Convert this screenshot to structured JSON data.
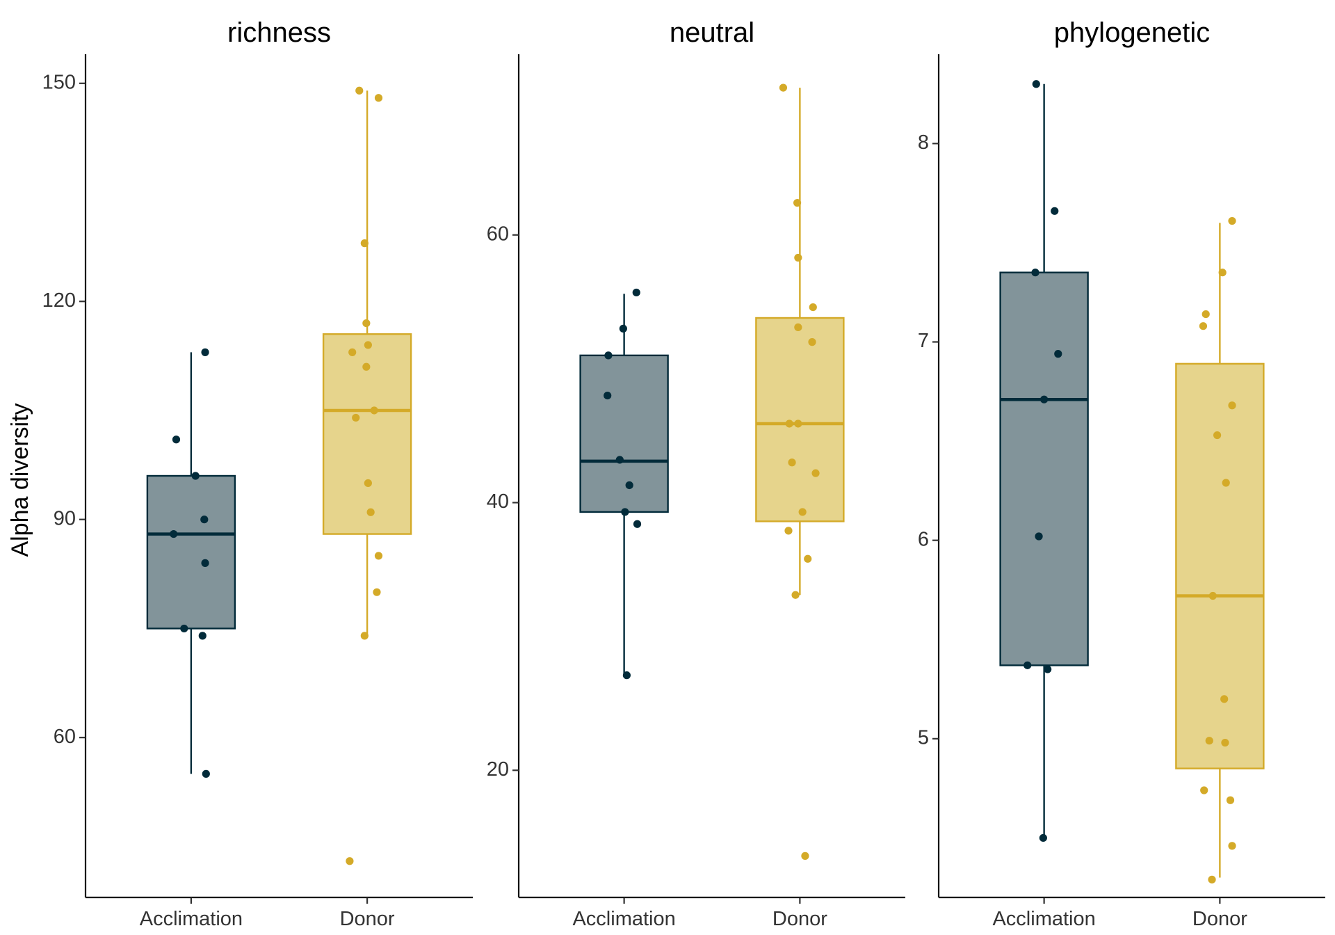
{
  "chart_data": {
    "type": "box",
    "ylabel": "Alpha diversity",
    "xlabel": "",
    "categories": [
      "Acclimation",
      "Donor"
    ],
    "colors": {
      "Acclimation": "#022b3a",
      "Donor": "#d4aa28"
    },
    "fill_colors": {
      "Acclimation": "#82949a",
      "Donor": "#e6d48c"
    },
    "grid": false,
    "legend": "none",
    "facets": [
      {
        "title": "richness",
        "ylim": [
          38,
          154
        ],
        "yticks": [
          60,
          90,
          120,
          150
        ],
        "boxes": [
          {
            "group": "Acclimation",
            "q1": 75,
            "median": 88,
            "q3": 96,
            "whisker_low": 55,
            "whisker_high": 113
          },
          {
            "group": "Donor",
            "q1": 88,
            "median": 105,
            "q3": 115.5,
            "whisker_low": 74,
            "whisker_high": 149
          }
        ],
        "points": [
          {
            "group": "Acclimation",
            "values": [
              101,
              96,
              88,
              90,
              84,
              75,
              74,
              113,
              55
            ],
            "jitter": [
              -0.17,
              0.05,
              -0.2,
              0.15,
              0.16,
              -0.08,
              0.13,
              0.16,
              0.17
            ]
          },
          {
            "group": "Donor",
            "values": [
              149,
              148,
              128,
              117,
              114,
              113,
              111,
              105,
              104,
              95,
              91,
              85,
              80,
              74,
              43
            ],
            "jitter": [
              -0.09,
              0.13,
              -0.03,
              -0.01,
              0.01,
              -0.17,
              -0.01,
              0.08,
              -0.13,
              0.01,
              0.04,
              0.13,
              0.11,
              -0.03,
              -0.2
            ]
          }
        ]
      },
      {
        "title": "neutral",
        "ylim": [
          10.5,
          73.5
        ],
        "yticks": [
          20,
          40,
          60
        ],
        "boxes": [
          {
            "group": "Acclimation",
            "q1": 39.3,
            "median": 43.1,
            "q3": 51,
            "whisker_low": 27,
            "whisker_high": 55.6
          },
          {
            "group": "Donor",
            "q1": 38.6,
            "median": 45.9,
            "q3": 53.8,
            "whisker_low": 33.1,
            "whisker_high": 71
          }
        ],
        "points": [
          {
            "group": "Acclimation",
            "values": [
              55.7,
              53,
              51,
              48,
              43.2,
              41.3,
              39.3,
              38.4,
              27.1
            ],
            "jitter": [
              0.14,
              -0.01,
              -0.18,
              -0.19,
              -0.05,
              0.06,
              0.01,
              0.15,
              0.03
            ]
          },
          {
            "group": "Donor",
            "values": [
              71,
              62.4,
              58.3,
              54.6,
              53.1,
              52,
              45.9,
              45.9,
              43,
              42.2,
              39.3,
              37.9,
              35.8,
              33.1,
              13.6
            ],
            "jitter": [
              -0.19,
              -0.03,
              -0.02,
              0.15,
              -0.02,
              0.14,
              -0.12,
              -0.02,
              -0.09,
              0.18,
              0.03,
              -0.13,
              0.09,
              -0.05,
              0.06
            ]
          }
        ]
      },
      {
        "title": "phylogenetic",
        "ylim": [
          4.2,
          8.45
        ],
        "yticks": [
          5,
          6,
          7,
          8
        ],
        "boxes": [
          {
            "group": "Acclimation",
            "q1": 5.37,
            "median": 6.71,
            "q3": 7.35,
            "whisker_low": 4.5,
            "whisker_high": 8.3
          },
          {
            "group": "Donor",
            "q1": 4.85,
            "median": 5.72,
            "q3": 6.89,
            "whisker_low": 4.3,
            "whisker_high": 7.6
          }
        ],
        "points": [
          {
            "group": "Acclimation",
            "values": [
              8.3,
              7.66,
              7.35,
              6.94,
              6.71,
              6.02,
              5.37,
              5.35,
              4.5
            ],
            "jitter": [
              -0.09,
              0.12,
              -0.1,
              0.16,
              0,
              -0.06,
              -0.19,
              0.04,
              -0.01
            ]
          },
          {
            "group": "Donor",
            "values": [
              7.61,
              7.35,
              7.14,
              7.08,
              6.68,
              6.53,
              6.29,
              5.72,
              5.2,
              4.99,
              4.98,
              4.74,
              4.69,
              4.46,
              4.29
            ],
            "jitter": [
              0.14,
              0.03,
              -0.16,
              -0.19,
              0.14,
              -0.03,
              0.07,
              -0.08,
              0.05,
              -0.12,
              0.06,
              -0.18,
              0.12,
              0.14,
              -0.09
            ]
          }
        ]
      }
    ]
  }
}
